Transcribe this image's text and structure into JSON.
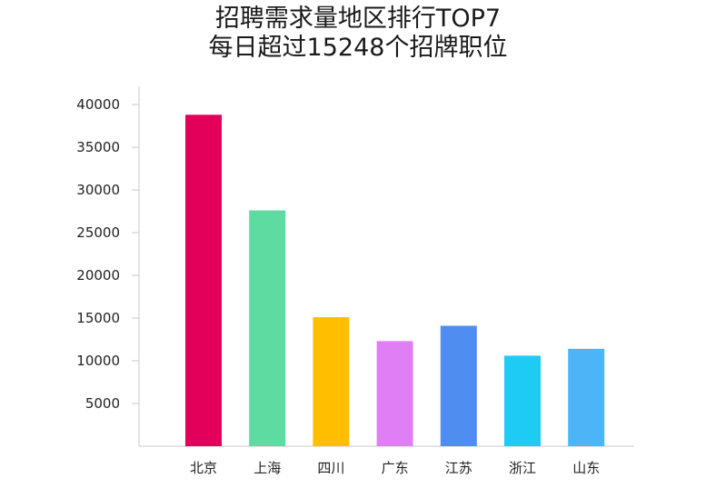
{
  "chart_data": {
    "type": "bar",
    "title": "招聘需求量地区排行TOP7",
    "subtitle": "每日超过15248个招牌职位",
    "xlabel": "",
    "ylabel": "",
    "categories": [
      "北京",
      "上海",
      "四川",
      "广东",
      "江苏",
      "浙江",
      "山东"
    ],
    "values": [
      38800,
      27600,
      15100,
      12300,
      14100,
      10600,
      11400
    ],
    "colors": [
      "#e3005a",
      "#5ddba0",
      "#ffbf00",
      "#e07ff5",
      "#4f8ef0",
      "#1ecbf5",
      "#4db5f7"
    ],
    "yticks": [
      5000,
      10000,
      15000,
      20000,
      25000,
      30000,
      35000,
      40000
    ],
    "ylim": [
      0,
      42000
    ],
    "grid": false,
    "legend": "none"
  }
}
